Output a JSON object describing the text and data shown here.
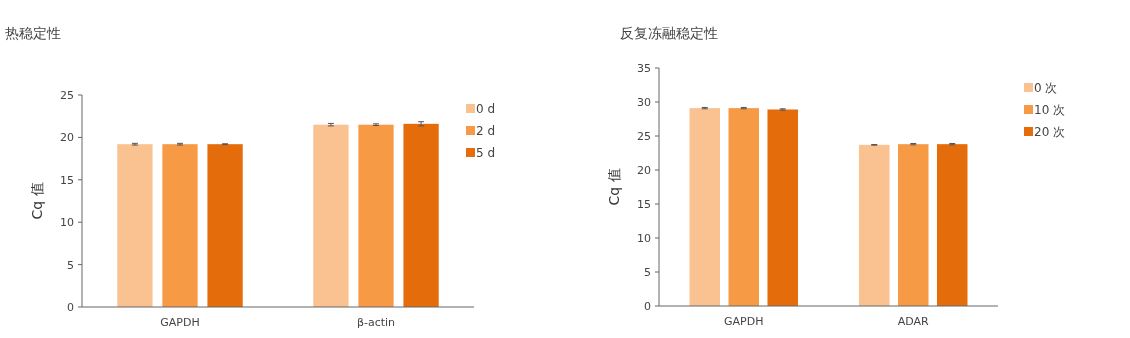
{
  "chart_data": [
    {
      "type": "bar",
      "title": "热稳定性",
      "ylabel": "Cq 值",
      "categories": [
        "GAPDH",
        "β-actin"
      ],
      "ylim": [
        0,
        25
      ],
      "yticks": [
        0,
        5,
        10,
        15,
        20,
        25
      ],
      "legend": "top right",
      "grid": false,
      "series": [
        {
          "name": "0 d",
          "color": "#f9c290",
          "values": [
            19.2,
            21.5
          ],
          "errors": [
            0.1,
            0.15
          ]
        },
        {
          "name": "2 d",
          "color": "#f79a45",
          "values": [
            19.2,
            21.5
          ],
          "errors": [
            0.1,
            0.1
          ]
        },
        {
          "name": "5 d",
          "color": "#e46c0a",
          "values": [
            19.2,
            21.6
          ],
          "errors": [
            0.05,
            0.25
          ]
        }
      ]
    },
    {
      "type": "bar",
      "title": "反复冻融稳定性",
      "ylabel": "Cq 值",
      "categories": [
        "GAPDH",
        "ADAR"
      ],
      "ylim": [
        0,
        35
      ],
      "yticks": [
        0,
        5,
        10,
        15,
        20,
        25,
        30,
        35
      ],
      "legend": "top right",
      "grid": false,
      "series": [
        {
          "name": "0 次",
          "color": "#f9c290",
          "values": [
            29.1,
            23.7
          ],
          "errors": [
            0.1,
            0.05
          ]
        },
        {
          "name": "10 次",
          "color": "#f79a45",
          "values": [
            29.1,
            23.8
          ],
          "errors": [
            0.1,
            0.1
          ]
        },
        {
          "name": "20 次",
          "color": "#e46c0a",
          "values": [
            28.9,
            23.8
          ],
          "errors": [
            0.1,
            0.1
          ]
        }
      ]
    }
  ]
}
